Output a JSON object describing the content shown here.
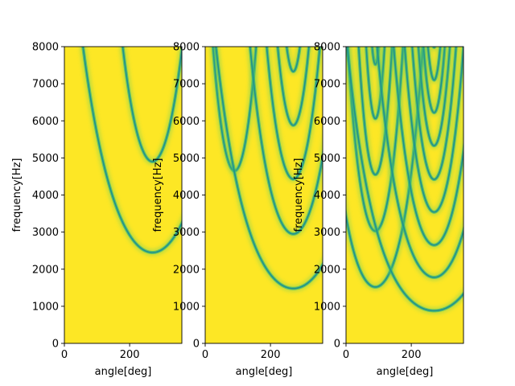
{
  "chart_data": [
    {
      "type": "heatmap",
      "xlabel": "angle[deg]",
      "ylabel": "frequency[Hz]",
      "xlim": [
        0,
        360
      ],
      "ylim": [
        0,
        8000
      ],
      "xticks": [
        0,
        200
      ],
      "yticks": [
        0,
        1000,
        2000,
        3000,
        4000,
        5000,
        6000,
        7000,
        8000
      ],
      "colormap": "viridis",
      "background_color": "#fde725",
      "notch_color": "#21918c",
      "notch_curves": [
        {
          "apex_angle": 270,
          "apex_freq": 2450,
          "spread_deg": 115
        },
        {
          "apex_angle": 270,
          "apex_freq": 4900,
          "spread_deg": 85
        },
        {
          "apex_angle": 90,
          "apex_freq": 8300,
          "spread_deg": 60
        }
      ]
    },
    {
      "type": "heatmap",
      "xlabel": "angle[deg]",
      "ylabel": "frequency[Hz]",
      "xlim": [
        0,
        360
      ],
      "ylim": [
        0,
        8000
      ],
      "xticks": [
        0,
        200
      ],
      "yticks": [
        0,
        1000,
        2000,
        3000,
        4000,
        5000,
        6000,
        7000,
        8000
      ],
      "colormap": "viridis",
      "background_color": "#fde725",
      "notch_color": "#21918c",
      "notch_curves": [
        {
          "apex_angle": 90,
          "apex_freq": 4650,
          "spread_deg": 58
        },
        {
          "apex_angle": 270,
          "apex_freq": 1480,
          "spread_deg": 100
        },
        {
          "apex_angle": 270,
          "apex_freq": 2950,
          "spread_deg": 80
        },
        {
          "apex_angle": 270,
          "apex_freq": 4430,
          "spread_deg": 68
        },
        {
          "apex_angle": 270,
          "apex_freq": 5880,
          "spread_deg": 58
        },
        {
          "apex_angle": 270,
          "apex_freq": 7330,
          "spread_deg": 48
        }
      ]
    },
    {
      "type": "heatmap",
      "xlabel": "angle[deg]",
      "ylabel": "frequency[Hz]",
      "xlim": [
        0,
        360
      ],
      "ylim": [
        0,
        8000
      ],
      "xticks": [
        0,
        200
      ],
      "yticks": [
        0,
        1000,
        2000,
        3000,
        4000,
        5000,
        6000,
        7000,
        8000
      ],
      "colormap": "viridis",
      "background_color": "#fde725",
      "notch_curves": [
        {
          "apex_angle": 90,
          "apex_freq": 1520,
          "spread_deg": 62
        },
        {
          "apex_angle": 90,
          "apex_freq": 3030,
          "spread_deg": 52
        },
        {
          "apex_angle": 90,
          "apex_freq": 4550,
          "spread_deg": 44
        },
        {
          "apex_angle": 90,
          "apex_freq": 6060,
          "spread_deg": 36
        },
        {
          "apex_angle": 90,
          "apex_freq": 7520,
          "spread_deg": 28
        },
        {
          "apex_angle": 270,
          "apex_freq": 880,
          "spread_deg": 92
        },
        {
          "apex_angle": 270,
          "apex_freq": 1780,
          "spread_deg": 80
        },
        {
          "apex_angle": 270,
          "apex_freq": 2650,
          "spread_deg": 70
        },
        {
          "apex_angle": 270,
          "apex_freq": 3540,
          "spread_deg": 62
        },
        {
          "apex_angle": 270,
          "apex_freq": 4420,
          "spread_deg": 56
        },
        {
          "apex_angle": 270,
          "apex_freq": 5330,
          "spread_deg": 50
        },
        {
          "apex_angle": 270,
          "apex_freq": 6220,
          "spread_deg": 44
        },
        {
          "apex_angle": 270,
          "apex_freq": 7100,
          "spread_deg": 38
        },
        {
          "apex_angle": 270,
          "apex_freq": 7980,
          "spread_deg": 32
        }
      ],
      "notch_color": "#21918c"
    }
  ]
}
